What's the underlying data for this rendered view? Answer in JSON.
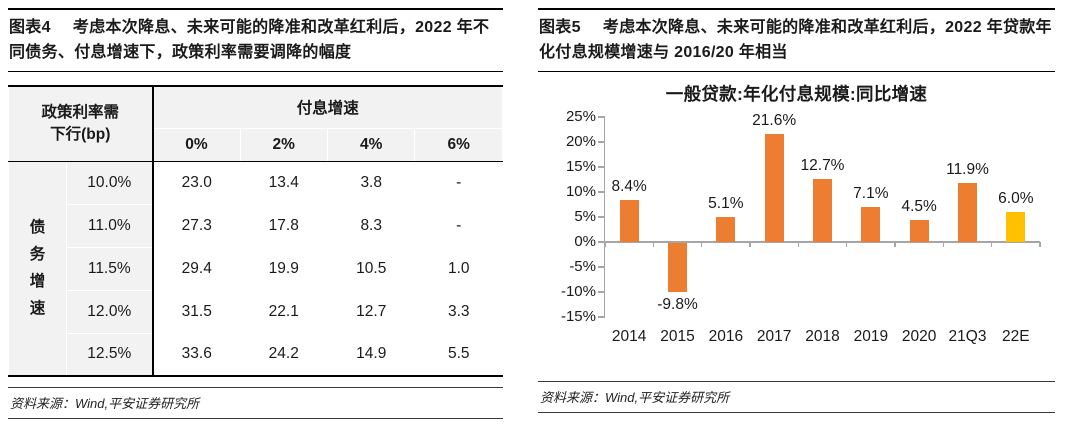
{
  "left_panel": {
    "figure_label": "图表4",
    "title": "考虑本次降息、未来可能的降准和改革红利后，2022 年不同债务、付息增速下，政策利率需要调降的幅度",
    "table": {
      "corner_header": "政策利率需\n下行(bp)",
      "col_group_header": "付息增速",
      "col_headers": [
        "0%",
        "2%",
        "4%",
        "6%"
      ],
      "row_group_label": "债务增速",
      "rows": [
        {
          "label": "10.0%",
          "values": [
            "23.0",
            "13.4",
            "3.8",
            "-"
          ]
        },
        {
          "label": "11.0%",
          "values": [
            "27.3",
            "17.8",
            "8.3",
            "-"
          ]
        },
        {
          "label": "11.5%",
          "values": [
            "29.4",
            "19.9",
            "10.5",
            "1.0"
          ]
        },
        {
          "label": "12.0%",
          "values": [
            "31.5",
            "22.1",
            "12.7",
            "3.3"
          ]
        },
        {
          "label": "12.5%",
          "values": [
            "33.6",
            "24.2",
            "14.9",
            "5.5"
          ]
        }
      ]
    },
    "source": "资料来源：Wind,平安证券研究所"
  },
  "right_panel": {
    "figure_label": "图表5",
    "title": "考虑本次降息、未来可能的降准和改革红利后，2022 年贷款年化付息规模增速与 2016/20 年相当",
    "source": "资料来源：Wind,平安证券研究所"
  },
  "chart_data": {
    "type": "bar",
    "title": "一般贷款:年化付息规模:同比增速",
    "categories": [
      "2014",
      "2015",
      "2016",
      "2017",
      "2018",
      "2019",
      "2020",
      "21Q3",
      "22E"
    ],
    "values": [
      8.4,
      -9.8,
      5.1,
      21.6,
      12.7,
      7.1,
      4.5,
      11.9,
      6.0
    ],
    "data_labels": [
      "8.4%",
      "-9.8%",
      "5.1%",
      "21.6%",
      "12.7%",
      "7.1%",
      "4.5%",
      "11.9%",
      "6.0%"
    ],
    "ylim": [
      -15,
      25
    ],
    "ytick_step": 5,
    "ytick_labels": [
      "25%",
      "20%",
      "15%",
      "10%",
      "5%",
      "0%",
      "-5%",
      "-10%",
      "-15%"
    ],
    "bar_color": "#ED7D31",
    "highlight_index": 8,
    "highlight_color": "#FFC000",
    "axis_color": "#A6A6A6",
    "grid": false,
    "legend": null
  }
}
